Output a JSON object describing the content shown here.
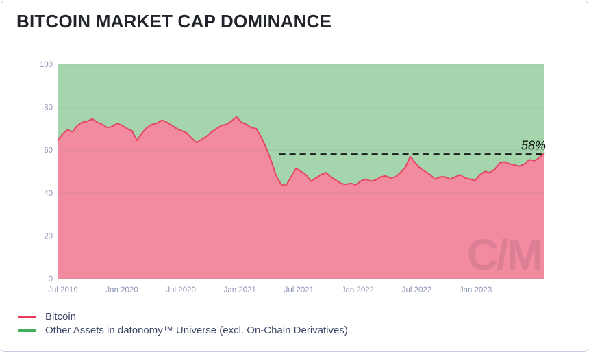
{
  "title": "BITCOIN MARKET CAP DOMINANCE",
  "chart_data": {
    "type": "area",
    "stacked": true,
    "title": "BITCOIN MARKET CAP DOMINANCE",
    "xlabel": "",
    "ylabel": "",
    "ylim": [
      0,
      100
    ],
    "y_ticks": [
      0,
      20,
      40,
      60,
      80,
      100
    ],
    "grid": true,
    "x_start": "Jul 2019",
    "x_step_months": 0.5,
    "x_ticks": [
      {
        "label": "Jul 2019",
        "month": 0
      },
      {
        "label": "Jan 2020",
        "month": 6
      },
      {
        "label": "Jul 2020",
        "month": 12
      },
      {
        "label": "Jan 2021",
        "month": 18
      },
      {
        "label": "Jul 2021",
        "month": 24
      },
      {
        "label": "Jan 2022",
        "month": 30
      },
      {
        "label": "Jul 2022",
        "month": 36
      },
      {
        "label": "Jan 2023",
        "month": 42
      }
    ],
    "series": [
      {
        "name": "Bitcoin",
        "line_color": "#e54563",
        "fill_color": "#f28ba0",
        "values": [
          64.5,
          67.5,
          69.5,
          68.5,
          71.5,
          73,
          73.5,
          74.5,
          73,
          72,
          70.5,
          71,
          72.5,
          71.5,
          70,
          69,
          64.5,
          68,
          70.5,
          72,
          72.5,
          74,
          73,
          71.5,
          70,
          69,
          68,
          65.5,
          63.5,
          65,
          66.5,
          68.5,
          70,
          71.5,
          72,
          73.5,
          75.5,
          73,
          72,
          70.5,
          70,
          66,
          61,
          55,
          48,
          44,
          43.5,
          47.5,
          51.5,
          50,
          48.5,
          45.5,
          47,
          48.5,
          49.5,
          47.5,
          46,
          44.5,
          44,
          44.5,
          43.8,
          45.5,
          46.5,
          45.5,
          46,
          47.5,
          48,
          47,
          47.5,
          49.5,
          52,
          57,
          54,
          51.5,
          50,
          48.5,
          46.5,
          47.5,
          47.5,
          46.5,
          47.5,
          48.5,
          47,
          46.5,
          45.8,
          48.5,
          50,
          49.5,
          51,
          54,
          54.5,
          53.5,
          53,
          52.5,
          53.5,
          55.5,
          55,
          56.5,
          58.5
        ]
      },
      {
        "name": "Other Assets in datonomy™ Universe (excl. On-Chain Derivatives)",
        "line_color": "#41ae5c",
        "fill_color": "#a5d5ad",
        "values_note": "remainder to 100 (stacked complement of Bitcoin)"
      }
    ],
    "annotation": {
      "label": "58%",
      "value": 58,
      "start_month": 22
    },
    "watermark": "C/M"
  },
  "legend": {
    "items": [
      {
        "label": "Bitcoin",
        "color": "#e73a5c"
      },
      {
        "label": "Other Assets in datonomy™ Universe (excl. On-Chain Derivatives)",
        "color": "#41ae5c"
      }
    ]
  },
  "colors": {
    "bitcoin_fill": "#f28ba0",
    "bitcoin_line": "#e54563",
    "other_fill": "#a5d5ad",
    "axis_text": "#8e96b6",
    "grid_line": "#7a85a8",
    "dashed_line": "#1c1c1c",
    "annotation_text": "#111111",
    "title_text": "#21252b",
    "legend_text": "#3d4668",
    "card_border": "#c7cddf",
    "watermark_ink": "rgba(25,25,55,0.10)"
  }
}
